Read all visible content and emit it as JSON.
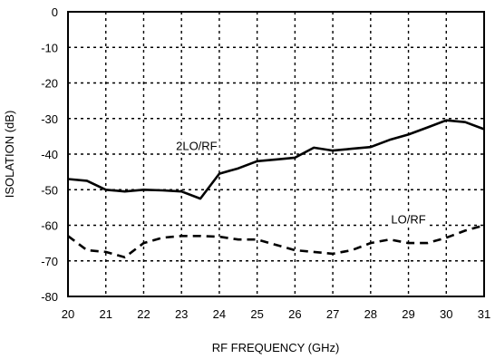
{
  "chart_data": {
    "type": "line",
    "xlabel": "RF FREQUENCY (GHz)",
    "ylabel": "ISOLATION  (dB)",
    "xlim": [
      20,
      31
    ],
    "ylim": [
      -80,
      0
    ],
    "xticks": [
      "20",
      "21",
      "22",
      "23",
      "24",
      "25",
      "26",
      "27",
      "28",
      "29",
      "30",
      "31"
    ],
    "yticks": [
      "0",
      "-10",
      "-20",
      "-30",
      "-40",
      "-50",
      "-60",
      "-70",
      "-80"
    ],
    "grid": true,
    "series": [
      {
        "name": "2LO/RF",
        "style": "solid",
        "x": [
          20,
          20.5,
          21,
          21.5,
          22,
          22.5,
          23,
          23.5,
          24,
          24.5,
          25,
          25.5,
          26,
          26.5,
          27,
          27.5,
          28,
          28.5,
          29,
          29.5,
          30,
          30.5,
          31
        ],
        "y": [
          -47,
          -47.5,
          -50,
          -50.5,
          -50,
          -50.2,
          -50.5,
          -52.5,
          -45.5,
          -44,
          -42,
          -41.5,
          -41,
          -38.2,
          -39,
          -38.5,
          -38,
          -36,
          -34.5,
          -32.5,
          -30.5,
          -31,
          -33
        ]
      },
      {
        "name": "LO/RF",
        "style": "dashed",
        "x": [
          20,
          20.5,
          21,
          21.5,
          22,
          22.5,
          23,
          23.5,
          24,
          24.5,
          25,
          25.5,
          26,
          26.5,
          27,
          27.5,
          28,
          28.5,
          29,
          29.5,
          30,
          30.5,
          31
        ],
        "y": [
          -63,
          -67,
          -67.5,
          -69,
          -65,
          -63.5,
          -63,
          -63,
          -63.2,
          -64,
          -64,
          -65.5,
          -67,
          -67.5,
          -68,
          -67,
          -65,
          -64,
          -65,
          -65,
          -63.5,
          -61.5,
          -60
        ]
      }
    ],
    "annotations": [
      {
        "text": "2LO/RF",
        "x": 23.4,
        "y": -38.8
      },
      {
        "text": "LO/RF",
        "x": 29,
        "y": -59.5
      }
    ]
  }
}
